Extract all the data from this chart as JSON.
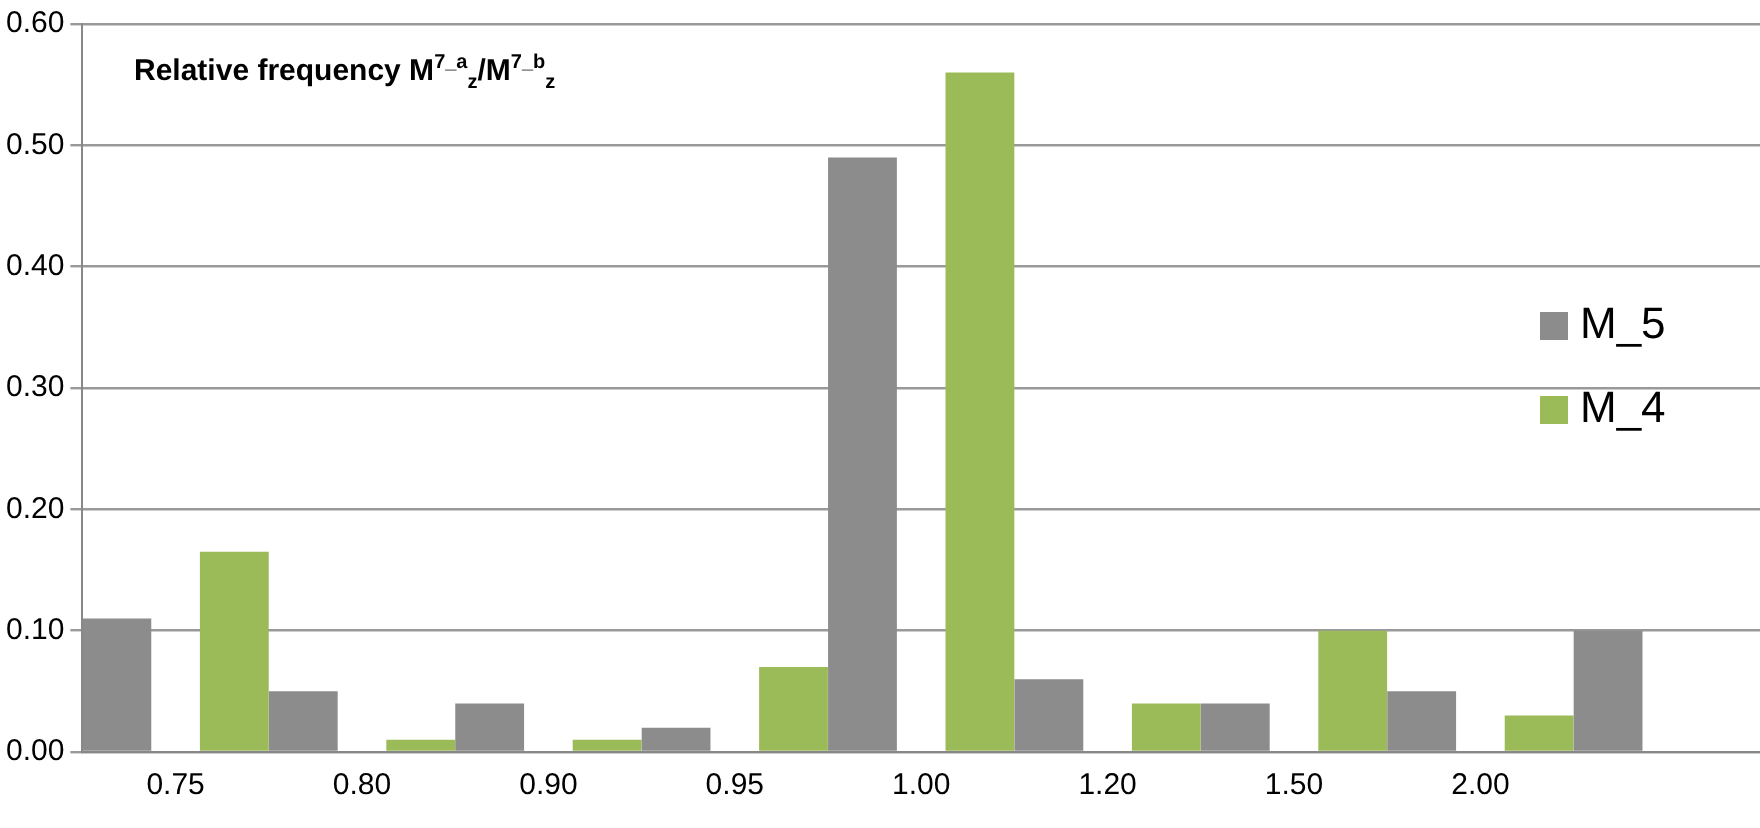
{
  "chart_data": {
    "type": "bar",
    "title": "Relative frequency M$^{7_a}$$_{z}$/M$^{7_b}$$_{z}$",
    "categories": [
      "0.75",
      "0.80",
      "0.90",
      "0.95",
      "1.00",
      "1.20",
      "1.50",
      "2.00",
      null
    ],
    "series": [
      {
        "name": "M_5",
        "color": "#8c8c8c",
        "values": [
          0.11,
          0.05,
          0.04,
          0.02,
          0.49,
          0.06,
          0.04,
          0.05,
          0.1
        ]
      },
      {
        "name": "M_4",
        "color": "#9bbb59",
        "values": [
          0.165,
          0.01,
          0.01,
          0.07,
          0.56,
          0.04,
          0.1,
          0.03,
          null
        ]
      }
    ],
    "ylim": [
      0,
      0.6
    ],
    "yticks": [
      {
        "value": 0,
        "label": "0.00"
      },
      {
        "value": 0.1,
        "label": "0.10"
      },
      {
        "value": 0.2,
        "label": "0.20"
      },
      {
        "value": 0.3,
        "label": "0.30"
      },
      {
        "value": 0.4,
        "label": "0.40"
      },
      {
        "value": 0.5,
        "label": "0.50"
      },
      {
        "value": 0.6,
        "label": "0.60"
      }
    ],
    "grid": "y",
    "legend": "right"
  }
}
